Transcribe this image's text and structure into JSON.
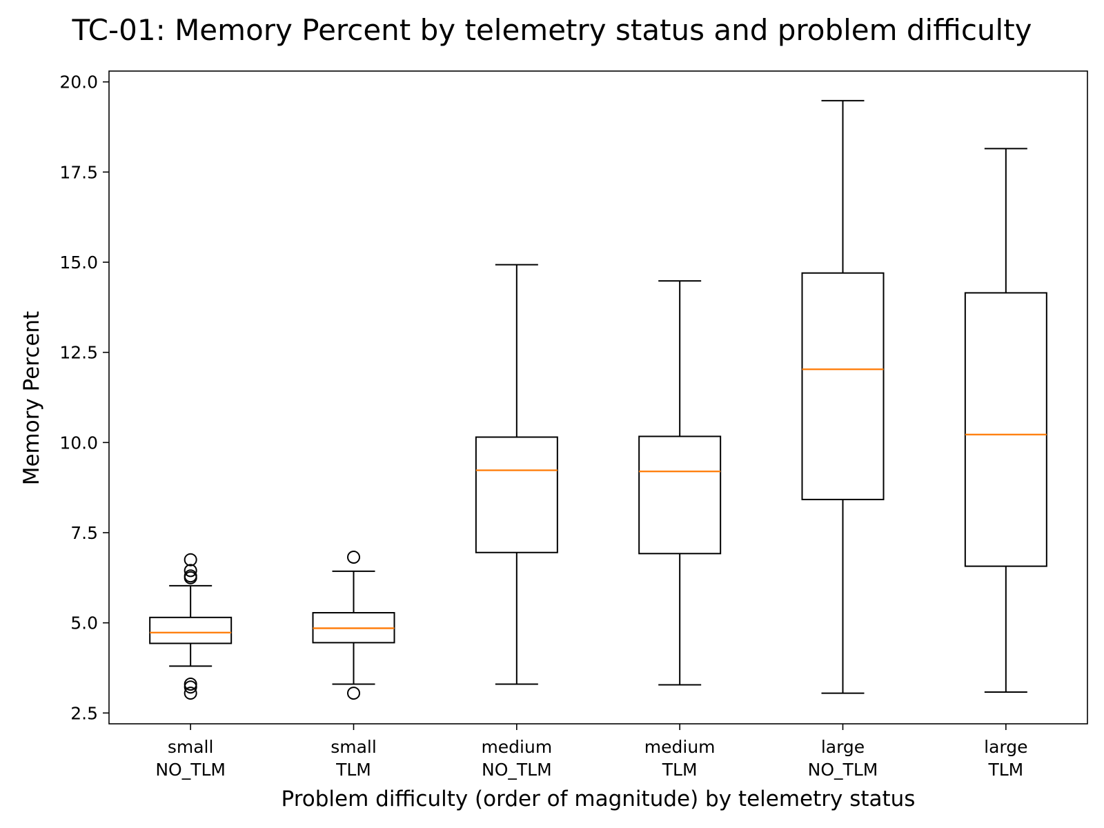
{
  "chart_data": {
    "type": "boxplot",
    "title": "TC-01: Memory Percent by telemetry status and problem difficulty",
    "xlabel": "Problem difficulty (order of magnitude) by telemetry status",
    "ylabel": "Memory Percent",
    "ylim": [
      2.2,
      20.3
    ],
    "yticks": [
      "2.5",
      "5.0",
      "7.5",
      "10.0",
      "12.5",
      "15.0",
      "17.5",
      "20.0"
    ],
    "grid": false,
    "categories": [
      {
        "line1": "small",
        "line2": "NO_TLM"
      },
      {
        "line1": "small",
        "line2": "TLM"
      },
      {
        "line1": "medium",
        "line2": "NO_TLM"
      },
      {
        "line1": "medium",
        "line2": "TLM"
      },
      {
        "line1": "large",
        "line2": "NO_TLM"
      },
      {
        "line1": "large",
        "line2": "TLM"
      }
    ],
    "boxes": [
      {
        "whisker_low": 3.8,
        "q1": 4.43,
        "median": 4.73,
        "q3": 5.15,
        "whisker_high": 6.03,
        "outliers": [
          6.75,
          6.45,
          6.3,
          6.25,
          3.3,
          3.22,
          3.05
        ]
      },
      {
        "whisker_low": 3.3,
        "q1": 4.45,
        "median": 4.85,
        "q3": 5.28,
        "whisker_high": 6.43,
        "outliers": [
          6.82,
          3.05
        ]
      },
      {
        "whisker_low": 3.3,
        "q1": 6.95,
        "median": 9.23,
        "q3": 10.15,
        "whisker_high": 14.93,
        "outliers": []
      },
      {
        "whisker_low": 3.28,
        "q1": 6.92,
        "median": 9.2,
        "q3": 10.17,
        "whisker_high": 14.48,
        "outliers": []
      },
      {
        "whisker_low": 3.05,
        "q1": 8.42,
        "median": 12.03,
        "q3": 14.7,
        "whisker_high": 19.48,
        "outliers": []
      },
      {
        "whisker_low": 3.08,
        "q1": 6.57,
        "median": 10.22,
        "q3": 14.15,
        "whisker_high": 18.15,
        "outliers": []
      }
    ],
    "colors": {
      "box": "#000000",
      "median": "#ff7f0e",
      "background": "#ffffff"
    }
  }
}
